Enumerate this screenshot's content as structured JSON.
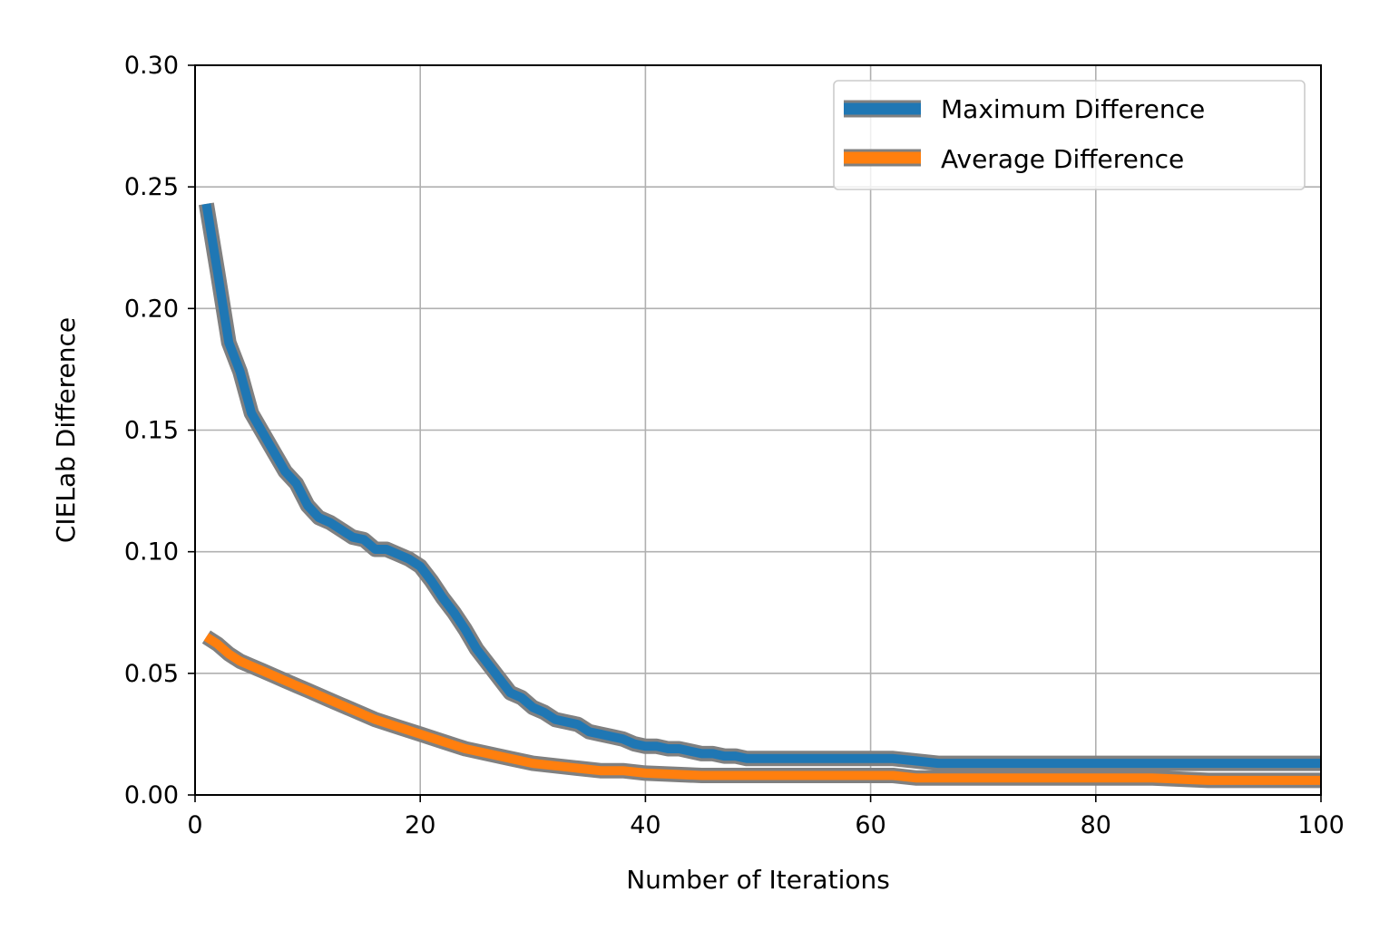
{
  "chart_data": {
    "type": "line",
    "title": "",
    "xlabel": "Number of Iterations",
    "ylabel": "CIELab Difference",
    "xlim": [
      0,
      100
    ],
    "ylim": [
      0,
      0.3
    ],
    "grid": true,
    "legend_position": "top-right",
    "x_ticks": [
      {
        "value": 0,
        "label": "0"
      },
      {
        "value": 20,
        "label": "20"
      },
      {
        "value": 40,
        "label": "40"
      },
      {
        "value": 60,
        "label": "60"
      },
      {
        "value": 80,
        "label": "80"
      },
      {
        "value": 100,
        "label": "100"
      }
    ],
    "y_ticks": [
      {
        "value": 0,
        "label": "0.00"
      },
      {
        "value": 0.05,
        "label": "0.05"
      },
      {
        "value": 0.1,
        "label": "0.10"
      },
      {
        "value": 0.15,
        "label": "0.15"
      },
      {
        "value": 0.2,
        "label": "0.20"
      },
      {
        "value": 0.25,
        "label": "0.25"
      },
      {
        "value": 0.3,
        "label": "0.30"
      }
    ],
    "series": [
      {
        "name": "Maximum Difference",
        "color": "#1f77b4",
        "edge_color": "#808080",
        "x": [
          1,
          2,
          3,
          4,
          5,
          6,
          7,
          8,
          9,
          10,
          11,
          12,
          13,
          14,
          15,
          16,
          17,
          18,
          19,
          20,
          21,
          22,
          23,
          24,
          25,
          26,
          27,
          28,
          29,
          30,
          31,
          32,
          33,
          34,
          35,
          36,
          37,
          38,
          39,
          40,
          41,
          42,
          43,
          44,
          45,
          46,
          47,
          48,
          49,
          50,
          55,
          60,
          62,
          64,
          66,
          68,
          70,
          75,
          80,
          85,
          90,
          95,
          100
        ],
        "values": [
          0.243,
          0.215,
          0.186,
          0.174,
          0.157,
          0.149,
          0.141,
          0.133,
          0.128,
          0.119,
          0.114,
          0.112,
          0.109,
          0.106,
          0.105,
          0.101,
          0.101,
          0.099,
          0.097,
          0.094,
          0.088,
          0.081,
          0.075,
          0.068,
          0.06,
          0.054,
          0.048,
          0.042,
          0.04,
          0.036,
          0.034,
          0.031,
          0.03,
          0.029,
          0.026,
          0.025,
          0.024,
          0.023,
          0.021,
          0.02,
          0.02,
          0.019,
          0.019,
          0.018,
          0.017,
          0.017,
          0.016,
          0.016,
          0.015,
          0.015,
          0.015,
          0.015,
          0.015,
          0.014,
          0.013,
          0.013,
          0.013,
          0.013,
          0.013,
          0.013,
          0.013,
          0.013,
          0.013
        ]
      },
      {
        "name": "Average Difference",
        "color": "#ff7f0e",
        "edge_color": "#808080",
        "x": [
          1,
          2,
          3,
          4,
          5,
          6,
          7,
          8,
          9,
          10,
          12,
          14,
          16,
          18,
          20,
          22,
          24,
          26,
          28,
          30,
          32,
          34,
          36,
          38,
          40,
          45,
          50,
          55,
          60,
          62,
          64,
          66,
          70,
          75,
          80,
          85,
          90,
          95,
          100
        ],
        "values": [
          0.065,
          0.062,
          0.058,
          0.055,
          0.053,
          0.051,
          0.049,
          0.047,
          0.045,
          0.043,
          0.039,
          0.035,
          0.031,
          0.028,
          0.025,
          0.022,
          0.019,
          0.017,
          0.015,
          0.013,
          0.012,
          0.011,
          0.01,
          0.01,
          0.009,
          0.008,
          0.008,
          0.008,
          0.008,
          0.008,
          0.007,
          0.007,
          0.007,
          0.007,
          0.007,
          0.007,
          0.006,
          0.006,
          0.006
        ]
      }
    ]
  }
}
